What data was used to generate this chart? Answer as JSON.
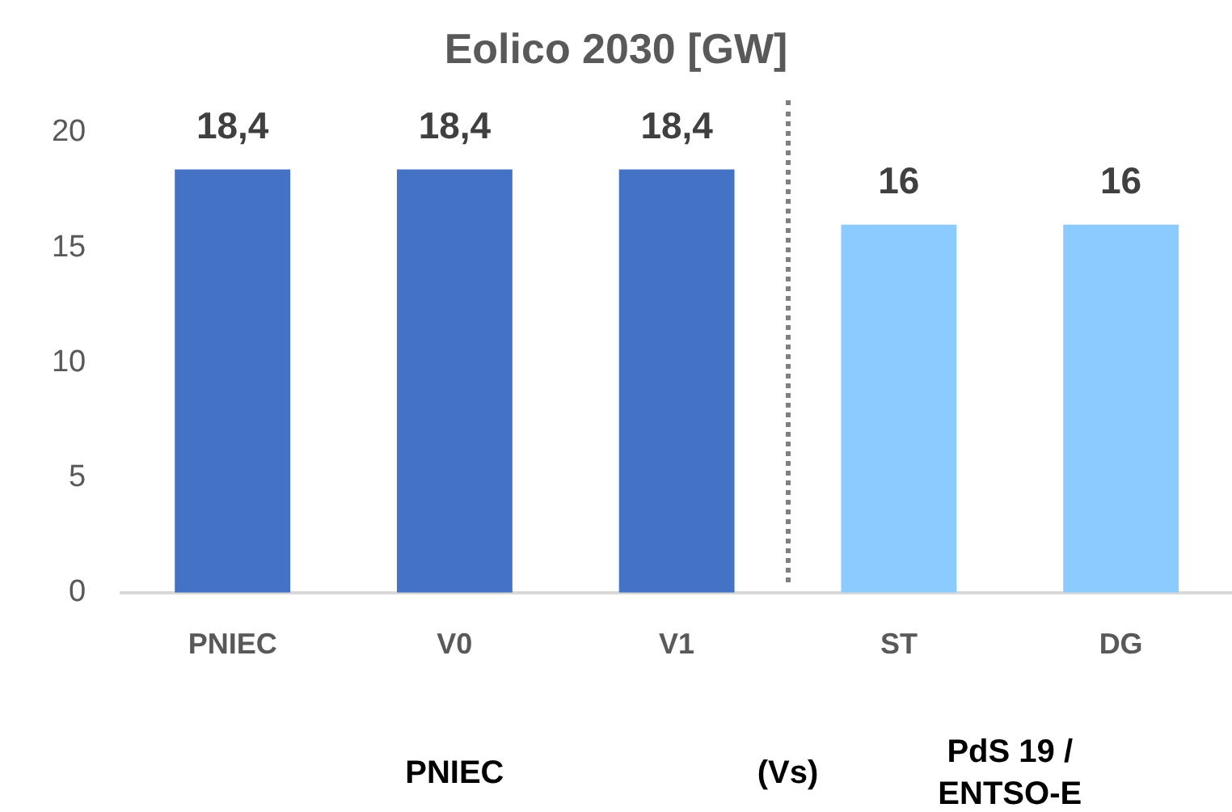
{
  "chart_data": {
    "type": "bar",
    "title": "Eolico 2030 [GW]",
    "categories": [
      "PNIEC",
      "V0",
      "V1",
      "ST",
      "DG"
    ],
    "values": [
      18.4,
      18.4,
      18.4,
      16,
      16
    ],
    "value_labels": [
      "18,4",
      "18,4",
      "18,4",
      "16",
      "16"
    ],
    "colors": [
      "#4472c4",
      "#4472c4",
      "#4472c4",
      "#8bcbff",
      "#8bcbff"
    ],
    "ylim": [
      0,
      20
    ],
    "yticks": [
      0,
      5,
      10,
      15,
      20
    ],
    "grid": false,
    "legend": false,
    "annotations": [
      "PNIEC",
      "(Vs)",
      "PdS 19 / ENTSO-E"
    ]
  }
}
